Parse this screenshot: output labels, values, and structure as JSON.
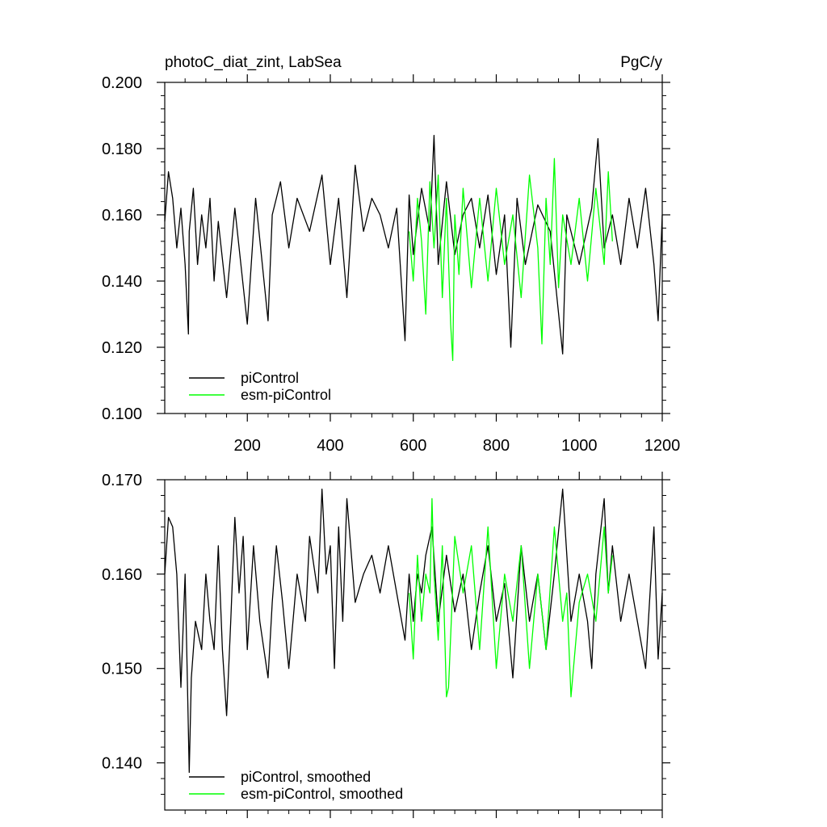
{
  "chart_data": [
    {
      "type": "line",
      "title": "photoC_diat_zint, LabSea",
      "units": "PgC/y",
      "xlim": [
        1,
        1200
      ],
      "ylim": [
        0.1,
        0.2
      ],
      "xticks": [
        200,
        400,
        600,
        800,
        1000,
        1200
      ],
      "xtick_labels": [
        "200",
        "400",
        "600",
        "800",
        "1000",
        "1200"
      ],
      "yticks": [
        0.1,
        0.12,
        0.14,
        0.16,
        0.18,
        0.2
      ],
      "ytick_labels": [
        "0.100",
        "0.120",
        "0.140",
        "0.160",
        "0.180",
        "0.200"
      ],
      "legend_position": "bottom-left",
      "series": [
        {
          "name": "piControl",
          "color": "#000000",
          "x": [
            1,
            10,
            20,
            30,
            40,
            50,
            58,
            60,
            70,
            80,
            90,
            100,
            110,
            120,
            130,
            150,
            170,
            200,
            220,
            250,
            260,
            280,
            300,
            320,
            350,
            380,
            400,
            420,
            440,
            460,
            480,
            500,
            520,
            540,
            560,
            580,
            590,
            600,
            620,
            640,
            650,
            660,
            680,
            700,
            720,
            740,
            760,
            780,
            800,
            820,
            835,
            850,
            870,
            900,
            930,
            960,
            970,
            1000,
            1030,
            1045,
            1060,
            1080,
            1100,
            1120,
            1140,
            1160,
            1180,
            1190,
            1200
          ],
          "y": [
            0.158,
            0.173,
            0.165,
            0.15,
            0.162,
            0.145,
            0.124,
            0.155,
            0.168,
            0.145,
            0.16,
            0.15,
            0.165,
            0.14,
            0.158,
            0.135,
            0.162,
            0.127,
            0.165,
            0.128,
            0.16,
            0.17,
            0.15,
            0.165,
            0.155,
            0.172,
            0.145,
            0.165,
            0.135,
            0.175,
            0.155,
            0.165,
            0.16,
            0.15,
            0.162,
            0.122,
            0.166,
            0.148,
            0.168,
            0.155,
            0.184,
            0.145,
            0.17,
            0.148,
            0.16,
            0.165,
            0.15,
            0.166,
            0.142,
            0.16,
            0.12,
            0.165,
            0.145,
            0.163,
            0.155,
            0.118,
            0.16,
            0.145,
            0.162,
            0.183,
            0.15,
            0.16,
            0.145,
            0.165,
            0.15,
            0.168,
            0.145,
            0.128,
            0.16
          ]
        },
        {
          "name": "esm-piControl",
          "color": "#00ff00",
          "x": [
            590,
            600,
            610,
            620,
            630,
            640,
            650,
            660,
            670,
            680,
            690,
            695,
            700,
            710,
            720,
            740,
            760,
            780,
            800,
            820,
            840,
            860,
            880,
            900,
            910,
            920,
            930,
            940,
            950,
            960,
            980,
            1000,
            1020,
            1040,
            1060,
            1070,
            1080
          ],
          "y": [
            0.155,
            0.14,
            0.165,
            0.152,
            0.13,
            0.17,
            0.15,
            0.172,
            0.135,
            0.165,
            0.127,
            0.116,
            0.16,
            0.142,
            0.168,
            0.138,
            0.165,
            0.14,
            0.168,
            0.145,
            0.16,
            0.135,
            0.172,
            0.15,
            0.121,
            0.165,
            0.145,
            0.177,
            0.138,
            0.16,
            0.145,
            0.165,
            0.14,
            0.168,
            0.145,
            0.173,
            0.152
          ]
        }
      ]
    },
    {
      "type": "line",
      "xlim": [
        1,
        1200
      ],
      "ylim": [
        0.135,
        0.17
      ],
      "yticks": [
        0.14,
        0.15,
        0.16,
        0.17
      ],
      "ytick_labels": [
        "0.140",
        "0.150",
        "0.160",
        "0.170"
      ],
      "legend_position": "bottom-left",
      "series": [
        {
          "name": "piControl, smoothed",
          "color": "#000000",
          "x": [
            1,
            10,
            20,
            30,
            40,
            50,
            55,
            60,
            65,
            75,
            90,
            100,
            110,
            120,
            130,
            140,
            150,
            160,
            170,
            180,
            190,
            200,
            215,
            230,
            250,
            260,
            270,
            285,
            300,
            320,
            340,
            350,
            370,
            380,
            390,
            400,
            410,
            420,
            430,
            440,
            460,
            480,
            500,
            520,
            540,
            560,
            580,
            590,
            600,
            610,
            620,
            630,
            645,
            660,
            680,
            700,
            720,
            740,
            760,
            780,
            800,
            820,
            840,
            860,
            880,
            900,
            920,
            940,
            960,
            980,
            1000,
            1020,
            1030,
            1040,
            1060,
            1070,
            1080,
            1100,
            1120,
            1140,
            1160,
            1180,
            1190,
            1200
          ],
          "y": [
            0.16,
            0.166,
            0.165,
            0.16,
            0.148,
            0.16,
            0.15,
            0.139,
            0.149,
            0.155,
            0.152,
            0.16,
            0.155,
            0.152,
            0.163,
            0.152,
            0.145,
            0.155,
            0.166,
            0.158,
            0.164,
            0.152,
            0.163,
            0.155,
            0.149,
            0.157,
            0.163,
            0.157,
            0.15,
            0.16,
            0.155,
            0.164,
            0.158,
            0.169,
            0.16,
            0.163,
            0.15,
            0.165,
            0.155,
            0.168,
            0.157,
            0.16,
            0.162,
            0.158,
            0.163,
            0.158,
            0.153,
            0.16,
            0.155,
            0.16,
            0.158,
            0.162,
            0.165,
            0.155,
            0.162,
            0.156,
            0.16,
            0.152,
            0.158,
            0.163,
            0.155,
            0.159,
            0.149,
            0.163,
            0.155,
            0.16,
            0.152,
            0.16,
            0.169,
            0.155,
            0.16,
            0.155,
            0.15,
            0.16,
            0.168,
            0.158,
            0.163,
            0.155,
            0.16,
            0.155,
            0.15,
            0.165,
            0.151,
            0.158
          ]
        },
        {
          "name": "esm-piControl, smoothed",
          "color": "#00ff00",
          "x": [
            590,
            600,
            610,
            620,
            630,
            640,
            645,
            650,
            660,
            670,
            680,
            685,
            700,
            720,
            740,
            760,
            780,
            800,
            820,
            840,
            860,
            880,
            900,
            920,
            940,
            960,
            970,
            980,
            990,
            1000,
            1020,
            1040,
            1060,
            1070,
            1080
          ],
          "y": [
            0.158,
            0.151,
            0.162,
            0.155,
            0.16,
            0.158,
            0.168,
            0.16,
            0.153,
            0.163,
            0.147,
            0.148,
            0.164,
            0.158,
            0.163,
            0.152,
            0.165,
            0.15,
            0.16,
            0.155,
            0.163,
            0.15,
            0.16,
            0.152,
            0.165,
            0.155,
            0.158,
            0.147,
            0.152,
            0.157,
            0.16,
            0.155,
            0.165,
            0.158,
            0.162
          ]
        }
      ]
    }
  ]
}
